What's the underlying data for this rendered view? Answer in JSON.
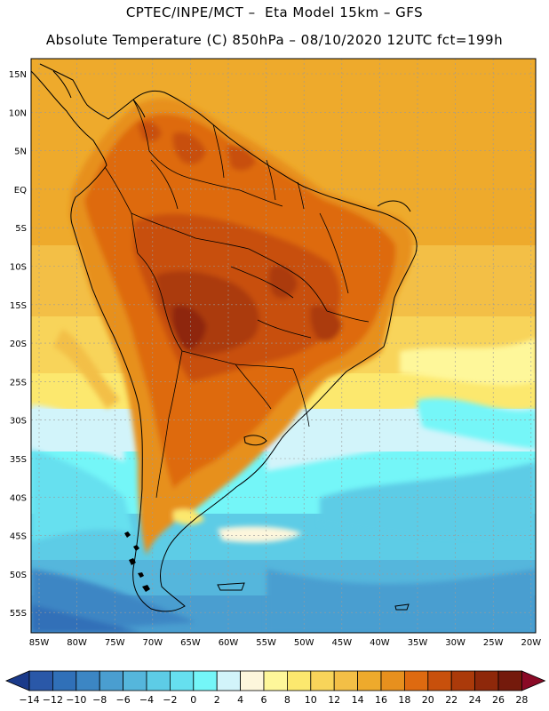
{
  "header": {
    "line1": "CPTEC/INPE/MCT –  Eta Model 15km – GFS",
    "line2": "Absolute Temperature (C) 850hPa – 08/10/2020 12UTC fct=199h"
  },
  "map": {
    "lat_labels": [
      "15N",
      "10N",
      "5N",
      "EQ",
      "5S",
      "10S",
      "15S",
      "20S",
      "25S",
      "30S",
      "35S",
      "40S",
      "45S",
      "50S",
      "55S"
    ],
    "lon_labels": [
      "85W",
      "80W",
      "75W",
      "70W",
      "65W",
      "60W",
      "55W",
      "50W",
      "45W",
      "40W",
      "35W",
      "30W",
      "25W",
      "20W"
    ]
  },
  "colorbar": {
    "labels": [
      "-14",
      "-12",
      "-10",
      "-8",
      "-6",
      "-4",
      "-2",
      "0",
      "2",
      "4",
      "6",
      "8",
      "10",
      "12",
      "14",
      "16",
      "18",
      "20",
      "22",
      "24",
      "26",
      "28"
    ],
    "colors": [
      "#1a3a8a",
      "#2a58a8",
      "#3070b8",
      "#3c86c4",
      "#4a9ed0",
      "#55b6dc",
      "#5dcce6",
      "#66e0ef",
      "#74f6f8",
      "#d2f4fa",
      "#fdf6dc",
      "#fef79a",
      "#fce86e",
      "#f8d45a",
      "#f3bf46",
      "#eeaa2c",
      "#e7901e",
      "#de6a10",
      "#c8500c",
      "#ab3a0a",
      "#8e280a",
      "#741a0c",
      "#8a0a26"
    ]
  }
}
